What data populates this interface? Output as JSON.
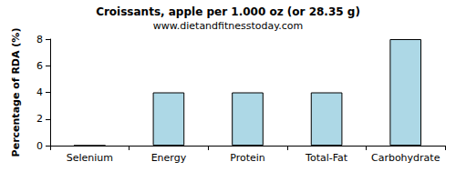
{
  "chart_data": {
    "type": "bar",
    "title": "Croissants, apple per 1.000 oz (or 28.35 g)",
    "subtitle": "www.dietandfitnesstoday.com",
    "y_label": "Percentage of RDA (%)",
    "categories": [
      "Selenium",
      "Energy",
      "Protein",
      "Total-Fat",
      "Carbohydrate"
    ],
    "values": [
      0,
      4,
      4,
      4,
      8
    ],
    "color": "#add8e6",
    "ylim": [
      0,
      8
    ],
    "yticks": [
      0,
      2,
      4,
      6,
      8
    ],
    "grid": false
  }
}
